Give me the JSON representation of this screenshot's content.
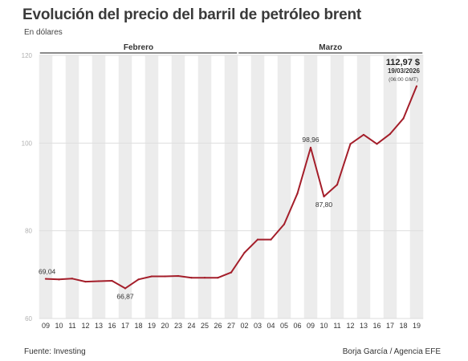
{
  "header": {
    "title": "Evolución del precio del barril de petróleo brent",
    "subtitle": "En dólares"
  },
  "footer": {
    "source": "Fuente: Investing",
    "credit": "Borja García / Agencia EFE"
  },
  "chart_data": {
    "type": "line",
    "title": "Evolución del precio del barril de petróleo brent",
    "subtitle": "En dólares",
    "months": [
      {
        "label": "Febrero",
        "from": 0,
        "to": 14
      },
      {
        "label": "Marzo",
        "from": 15,
        "to": 28
      }
    ],
    "categories": [
      "09",
      "10",
      "11",
      "12",
      "13",
      "16",
      "17",
      "18",
      "19",
      "20",
      "23",
      "24",
      "25",
      "26",
      "27",
      "02",
      "03",
      "04",
      "05",
      "06",
      "09",
      "10",
      "11",
      "12",
      "13",
      "16",
      "17",
      "18",
      "19"
    ],
    "series": [
      {
        "values": [
          69.04,
          68.9,
          69.1,
          68.4,
          68.5,
          68.6,
          66.87,
          68.9,
          69.6,
          69.6,
          69.7,
          69.3,
          69.3,
          69.3,
          70.5,
          75.0,
          78.0,
          78.0,
          81.5,
          88.5,
          98.96,
          87.8,
          90.5,
          99.8,
          101.9,
          99.8,
          102.1,
          105.6,
          112.97
        ],
        "color": "#a41e2a"
      }
    ],
    "ylim": [
      60,
      120
    ],
    "yticks": [
      60,
      80,
      100,
      120
    ],
    "grid": true,
    "annotations": [
      {
        "index": 0,
        "label": "69,04",
        "position": "left"
      },
      {
        "index": 6,
        "label": "66,87",
        "position": "below"
      },
      {
        "index": 20,
        "label": "98,96",
        "position": "above"
      },
      {
        "index": 21,
        "label": "87,80",
        "position": "below"
      }
    ],
    "last_value": {
      "index": 28,
      "value_label": "112,97 $",
      "date_label": "19/03/2026",
      "time_label": "(06:00 GMT)"
    }
  }
}
